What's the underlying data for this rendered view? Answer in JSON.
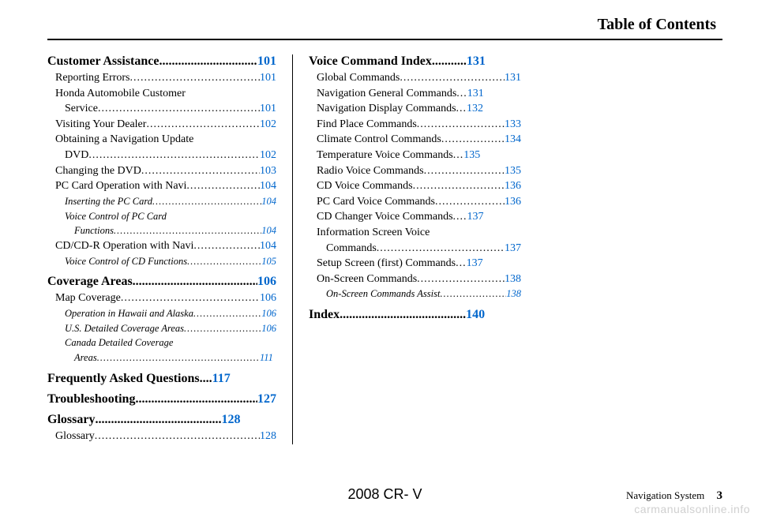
{
  "header": {
    "title": "Table of Contents"
  },
  "columns": [
    {
      "sections": [
        {
          "title": "Customer Assistance",
          "page": "101",
          "entries": [
            {
              "label": "Reporting Errors",
              "page": "101"
            },
            {
              "label": "Honda Automobile Customer",
              "cont": "Service",
              "page": "101"
            },
            {
              "label": "Visiting Your Dealer",
              "page": "102"
            },
            {
              "label": "Obtaining a Navigation Update",
              "cont": "DVD",
              "page": "102"
            },
            {
              "label": "Changing the DVD",
              "page": "103"
            },
            {
              "label": "PC Card Operation with Navi",
              "page": "104"
            },
            {
              "label": "Inserting the PC Card",
              "page": "104",
              "sub": true
            },
            {
              "label": "Voice Control of PC Card",
              "cont": "Functions",
              "page": "104",
              "sub": true
            },
            {
              "label": "CD/CD-R Operation with Navi",
              "page": "104"
            },
            {
              "label": "Voice Control of CD Functions",
              "page": "105",
              "sub": true
            }
          ]
        },
        {
          "title": "Coverage Areas",
          "page": "106",
          "entries": [
            {
              "label": "Map Coverage",
              "page": "106"
            },
            {
              "label": "Operation in Hawaii and Alaska",
              "page": "106",
              "sub": true
            },
            {
              "label": "U.S. Detailed Coverage Areas",
              "page": "106",
              "sub": true
            },
            {
              "label": "Canada Detailed Coverage",
              "cont": "Areas",
              "page": "111",
              "sub": true
            }
          ]
        },
        {
          "title": "Frequently Asked Questions",
          "page": "117",
          "dots_count": 4,
          "entries": []
        },
        {
          "title": "Troubleshooting",
          "page": "127",
          "entries": []
        },
        {
          "title": "Glossary",
          "page": "128",
          "entries": [
            {
              "label": "Glossary",
              "page": "128"
            }
          ]
        }
      ]
    },
    {
      "sections": [
        {
          "title": "Voice Command Index",
          "page": "131",
          "title_dots": 11,
          "entries": [
            {
              "label": "Global Commands",
              "page": "131"
            },
            {
              "label": "Navigation General Commands",
              "page": "131",
              "dots": 3
            },
            {
              "label": "Navigation Display Commands",
              "page": "132",
              "dots": 3
            },
            {
              "label": "Find Place Commands",
              "page": "133"
            },
            {
              "label": "Climate Control Commands",
              "page": "134"
            },
            {
              "label": "Temperature Voice Commands",
              "page": "135",
              "dots": 3
            },
            {
              "label": "Radio Voice Commands",
              "page": "135"
            },
            {
              "label": "CD Voice Commands",
              "page": "136"
            },
            {
              "label": "PC Card Voice Commands",
              "page": "136"
            },
            {
              "label": "CD Changer Voice Commands",
              "page": "137",
              "dots": 4
            },
            {
              "label": "Information Screen Voice",
              "cont": "Commands",
              "page": "137"
            },
            {
              "label": "Setup Screen (first) Commands",
              "page": "137",
              "dots": 3
            },
            {
              "label": "On-Screen Commands",
              "page": "138"
            },
            {
              "label": "On-Screen Commands Assist",
              "page": "138",
              "sub": true
            }
          ]
        },
        {
          "title": "Index",
          "page": "140",
          "title_space": true,
          "entries": []
        }
      ]
    }
  ],
  "footer": {
    "center": "2008  CR- V",
    "right_label": "Navigation System",
    "right_page": "3"
  },
  "watermark": "carmanualsonline.info",
  "colors": {
    "link": "#0066cc",
    "text": "#000000",
    "watermark": "#d0d0d0"
  }
}
